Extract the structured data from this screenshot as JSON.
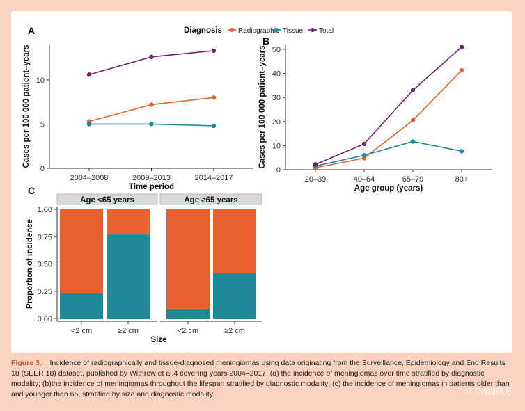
{
  "colors": {
    "radiographic": "#e8612e",
    "tissue": "#1e8a99",
    "total": "#74246d",
    "background": "#f9d3bf",
    "strip": "#d9d9d9"
  },
  "legend": {
    "title": "Diagnosis",
    "items": [
      "Radiographic",
      "Tissue",
      "Total"
    ]
  },
  "chart_data": [
    {
      "panel": "A",
      "type": "line",
      "xlabel": "Time period",
      "ylabel": "Cases per 100 000 patient–years",
      "categories": [
        "2004–2008",
        "2009–2013",
        "2014–2017"
      ],
      "ylim": [
        0,
        14
      ],
      "yticks": [
        0,
        5,
        10
      ],
      "series": [
        {
          "name": "Radiographic",
          "values": [
            5.3,
            7.2,
            8.0
          ]
        },
        {
          "name": "Tissue",
          "values": [
            5.0,
            5.0,
            4.8
          ]
        },
        {
          "name": "Total",
          "values": [
            10.6,
            12.6,
            13.3
          ]
        }
      ]
    },
    {
      "panel": "B",
      "type": "line",
      "xlabel": "Age group (years)",
      "ylabel": "Cases per 100 000 patient–years",
      "categories": [
        "20–39",
        "40–64",
        "65–79",
        "80+"
      ],
      "ylim": [
        0,
        52
      ],
      "yticks": [
        0,
        10,
        20,
        30,
        40,
        50
      ],
      "series": [
        {
          "name": "Radiographic",
          "values": [
            0.8,
            4.8,
            20.5,
            41.3
          ]
        },
        {
          "name": "Tissue",
          "values": [
            1.5,
            6.0,
            11.7,
            7.7
          ]
        },
        {
          "name": "Total",
          "values": [
            2.2,
            10.7,
            33.0,
            51.0
          ]
        }
      ]
    },
    {
      "panel": "C",
      "type": "bar",
      "stacked": true,
      "xlabel": "Size",
      "ylabel": "Proportion of incidence",
      "ylim": [
        0,
        1
      ],
      "yticks": [
        "0.00",
        "0.25",
        "0.50",
        "0.75",
        "1.00"
      ],
      "facets": [
        {
          "title": "Age <65 years",
          "categories": [
            "<2 cm",
            "≥2 cm"
          ],
          "tissue": [
            0.23,
            0.77
          ],
          "radiographic": [
            0.77,
            0.23
          ]
        },
        {
          "title": "Age ≥65 years",
          "categories": [
            "<2 cm",
            "≥2 cm"
          ],
          "tissue": [
            0.09,
            0.42
          ],
          "radiographic": [
            0.91,
            0.58
          ]
        }
      ]
    }
  ],
  "caption": {
    "figure_label": "Figure 3.",
    "text": "Incidence of radiographically and tissue-diagnosed meningiomas using data originating from the Surveillance, Epidemiology and End Results 18 (SEER 18) dataset, published by Withrow et al.4 covering years 2004–2017: (a) the incidence of meningiomas over time stratified by diagnostic modality; (b)the incidence of meningiomas throughout the lifespan stratified by diagnostic modality; (c) the incidence of meningiomas in patients older than and younger than 65, stratified by size and diagnostic modality."
  },
  "watermark": "ICON咖码万"
}
